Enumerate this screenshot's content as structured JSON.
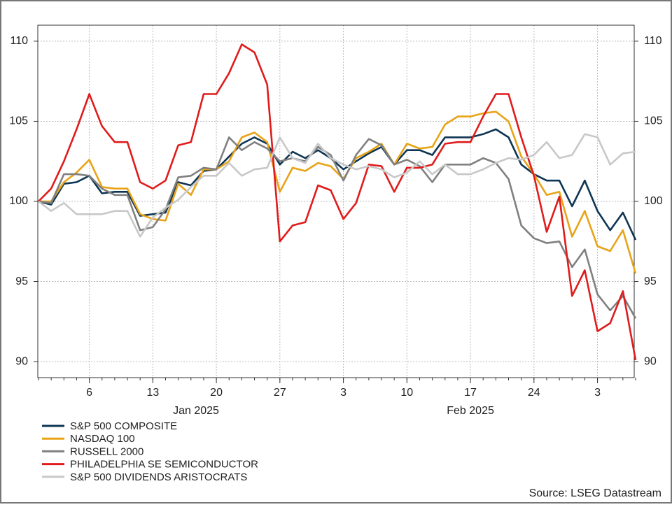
{
  "chart_data": {
    "type": "line",
    "categories": [
      null,
      null,
      null,
      null,
      "6",
      null,
      null,
      null,
      null,
      "13",
      null,
      null,
      null,
      null,
      "20",
      null,
      null,
      null,
      null,
      "27",
      null,
      null,
      null,
      null,
      "3",
      null,
      null,
      null,
      null,
      "10",
      null,
      null,
      null,
      null,
      "17",
      null,
      null,
      null,
      null,
      "24",
      null,
      null,
      null,
      null,
      "3",
      null,
      null,
      null
    ],
    "month_labels": [
      "Jan 2025",
      "Feb 2025"
    ],
    "series": [
      {
        "name": "S&P 500 COMPOSITE",
        "color": "#0d3553",
        "values": [
          100,
          99.8,
          101.1,
          101.2,
          101.6,
          100.5,
          100.6,
          100.6,
          99.1,
          99.2,
          99.3,
          101.2,
          101,
          101.9,
          102,
          102.8,
          103.6,
          104,
          103.6,
          102.3,
          103.1,
          102.7,
          103.2,
          102.7,
          102,
          102.5,
          103,
          103.4,
          102.3,
          103.2,
          103.2,
          102.9,
          104,
          104,
          104,
          104.2,
          104.5,
          104,
          102.3,
          101.7,
          101.3,
          101.3,
          99.7,
          101.3,
          99.4,
          98.2,
          99.3,
          97.6
        ]
      },
      {
        "name": "NASDAQ 100",
        "color": "#e8a317",
        "values": [
          100,
          100,
          101.2,
          101.8,
          102.6,
          100.9,
          100.8,
          100.8,
          99.2,
          98.9,
          98.8,
          101.1,
          100.4,
          102,
          102,
          102.5,
          104,
          104.3,
          103.7,
          100.6,
          102.1,
          101.9,
          102.4,
          102.2,
          101.4,
          102.7,
          103.1,
          103.6,
          102.3,
          103.6,
          103.3,
          103.4,
          104.8,
          105.3,
          105.3,
          105.5,
          105.6,
          105,
          102.8,
          101.7,
          100.4,
          100.6,
          97.8,
          99.4,
          97.2,
          96.9,
          98.2,
          95.5
        ]
      },
      {
        "name": "RUSSELL 2000",
        "color": "#808080",
        "values": [
          100,
          99.9,
          101.7,
          101.7,
          101.6,
          100.8,
          100.4,
          100.4,
          98.2,
          98.4,
          99.5,
          101.5,
          101.6,
          102.1,
          102,
          104,
          103.2,
          103.7,
          103.3,
          102.5,
          102.7,
          102.5,
          103.4,
          102.9,
          101.3,
          102.9,
          103.9,
          103.5,
          102.3,
          102.6,
          102.2,
          101.2,
          102.3,
          102.3,
          102.3,
          102.7,
          102.4,
          101.4,
          98.5,
          97.7,
          97.4,
          97.5,
          95.9,
          97,
          94.2,
          93.2,
          94.1,
          92.7
        ]
      },
      {
        "name": "PHILADELPHIA SE SEMICONDUCTOR",
        "color": "#e01b1b",
        "values": [
          100,
          100.8,
          102.5,
          104.5,
          106.7,
          104.7,
          103.7,
          103.7,
          101.2,
          100.8,
          101.3,
          103.5,
          103.7,
          106.7,
          106.7,
          108,
          109.8,
          109.3,
          107.3,
          97.5,
          98.5,
          98.7,
          101,
          100.7,
          98.9,
          99.9,
          102.3,
          102.2,
          100.6,
          102.1,
          102.1,
          102.3,
          103.6,
          103.7,
          103.7,
          105.3,
          106.7,
          106.7,
          104,
          101.6,
          98.1,
          100.3,
          94.1,
          95.7,
          91.9,
          92.4,
          94.4,
          90.1
        ]
      },
      {
        "name": "S&P 500 DIVIDENDS ARISTOCRATS",
        "color": "#c8c8c8",
        "values": [
          100,
          99.4,
          99.9,
          99.2,
          99.2,
          99.2,
          99.4,
          99.4,
          97.8,
          99,
          99.6,
          100.1,
          100.9,
          101.6,
          101.6,
          102.4,
          101.6,
          102,
          102.1,
          104,
          102.7,
          102.4,
          103.6,
          102.7,
          102.3,
          102,
          102.2,
          102,
          101.5,
          101.8,
          102.5,
          101.7,
          102.3,
          101.7,
          101.7,
          102,
          102.4,
          102.7,
          102.6,
          102.9,
          103.7,
          102.7,
          102.9,
          104.2,
          104,
          102.3,
          103,
          103.1
        ]
      }
    ],
    "ylim": [
      89,
      111
    ],
    "yticks": [
      90,
      95,
      100,
      105,
      110
    ],
    "grid": true,
    "source": "Source: LSEG Datastream"
  }
}
